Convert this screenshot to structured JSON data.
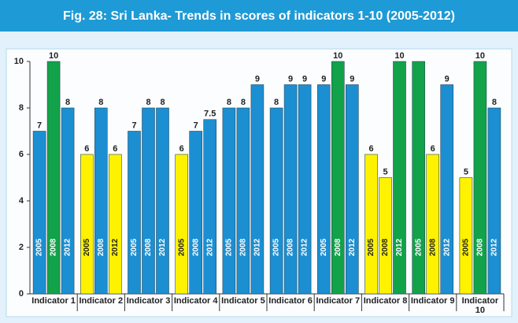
{
  "chart_data": {
    "type": "bar",
    "title": "Fig. 28: Sri Lanka- Trends in scores of indicators 1-10 (2005-2012)",
    "categories": [
      "Indicator 1",
      "Indicator 2",
      "Indicator 3",
      "Indicator 4",
      "Indicator 5",
      "Indicator 6",
      "Indicator 7",
      "Indicator 8",
      "Indicator 9",
      "Indicator 10"
    ],
    "series": [
      {
        "name": "2005",
        "values": [
          7,
          6,
          7,
          6,
          8,
          8,
          9,
          6,
          10,
          5
        ],
        "colors": [
          "#1b8fd2",
          "#fff200",
          "#1b8fd2",
          "#fff200",
          "#1b8fd2",
          "#1b8fd2",
          "#1b8fd2",
          "#fff200",
          "#12a24a",
          "#fff200"
        ],
        "value_labels": [
          "7",
          "6",
          "7",
          "6",
          "8",
          "8",
          "9",
          "6",
          null,
          "5"
        ]
      },
      {
        "name": "2008",
        "values": [
          10,
          8,
          8,
          7,
          8,
          9,
          10,
          5,
          6,
          10
        ],
        "colors": [
          "#12a24a",
          "#1b8fd2",
          "#1b8fd2",
          "#1b8fd2",
          "#1b8fd2",
          "#1b8fd2",
          "#12a24a",
          "#fff200",
          "#fff200",
          "#12a24a"
        ],
        "value_labels": [
          "10",
          "8",
          "8",
          "7",
          "8",
          "9",
          "10",
          "5",
          "6",
          "10"
        ]
      },
      {
        "name": "2012",
        "values": [
          8,
          6,
          8,
          7.5,
          9,
          9,
          9,
          10,
          9,
          8
        ],
        "colors": [
          "#1b8fd2",
          "#fff200",
          "#1b8fd2",
          "#1b8fd2",
          "#1b8fd2",
          "#1b8fd2",
          "#1b8fd2",
          "#12a24a",
          "#1b8fd2",
          "#1b8fd2"
        ],
        "value_labels": [
          "8",
          "6",
          "8",
          "7.5",
          "9",
          "9",
          "9",
          "10",
          "9",
          "8"
        ]
      }
    ],
    "ylim": [
      0,
      10
    ],
    "yticks": [
      0,
      2,
      4,
      6,
      8,
      10
    ],
    "grid": false
  }
}
